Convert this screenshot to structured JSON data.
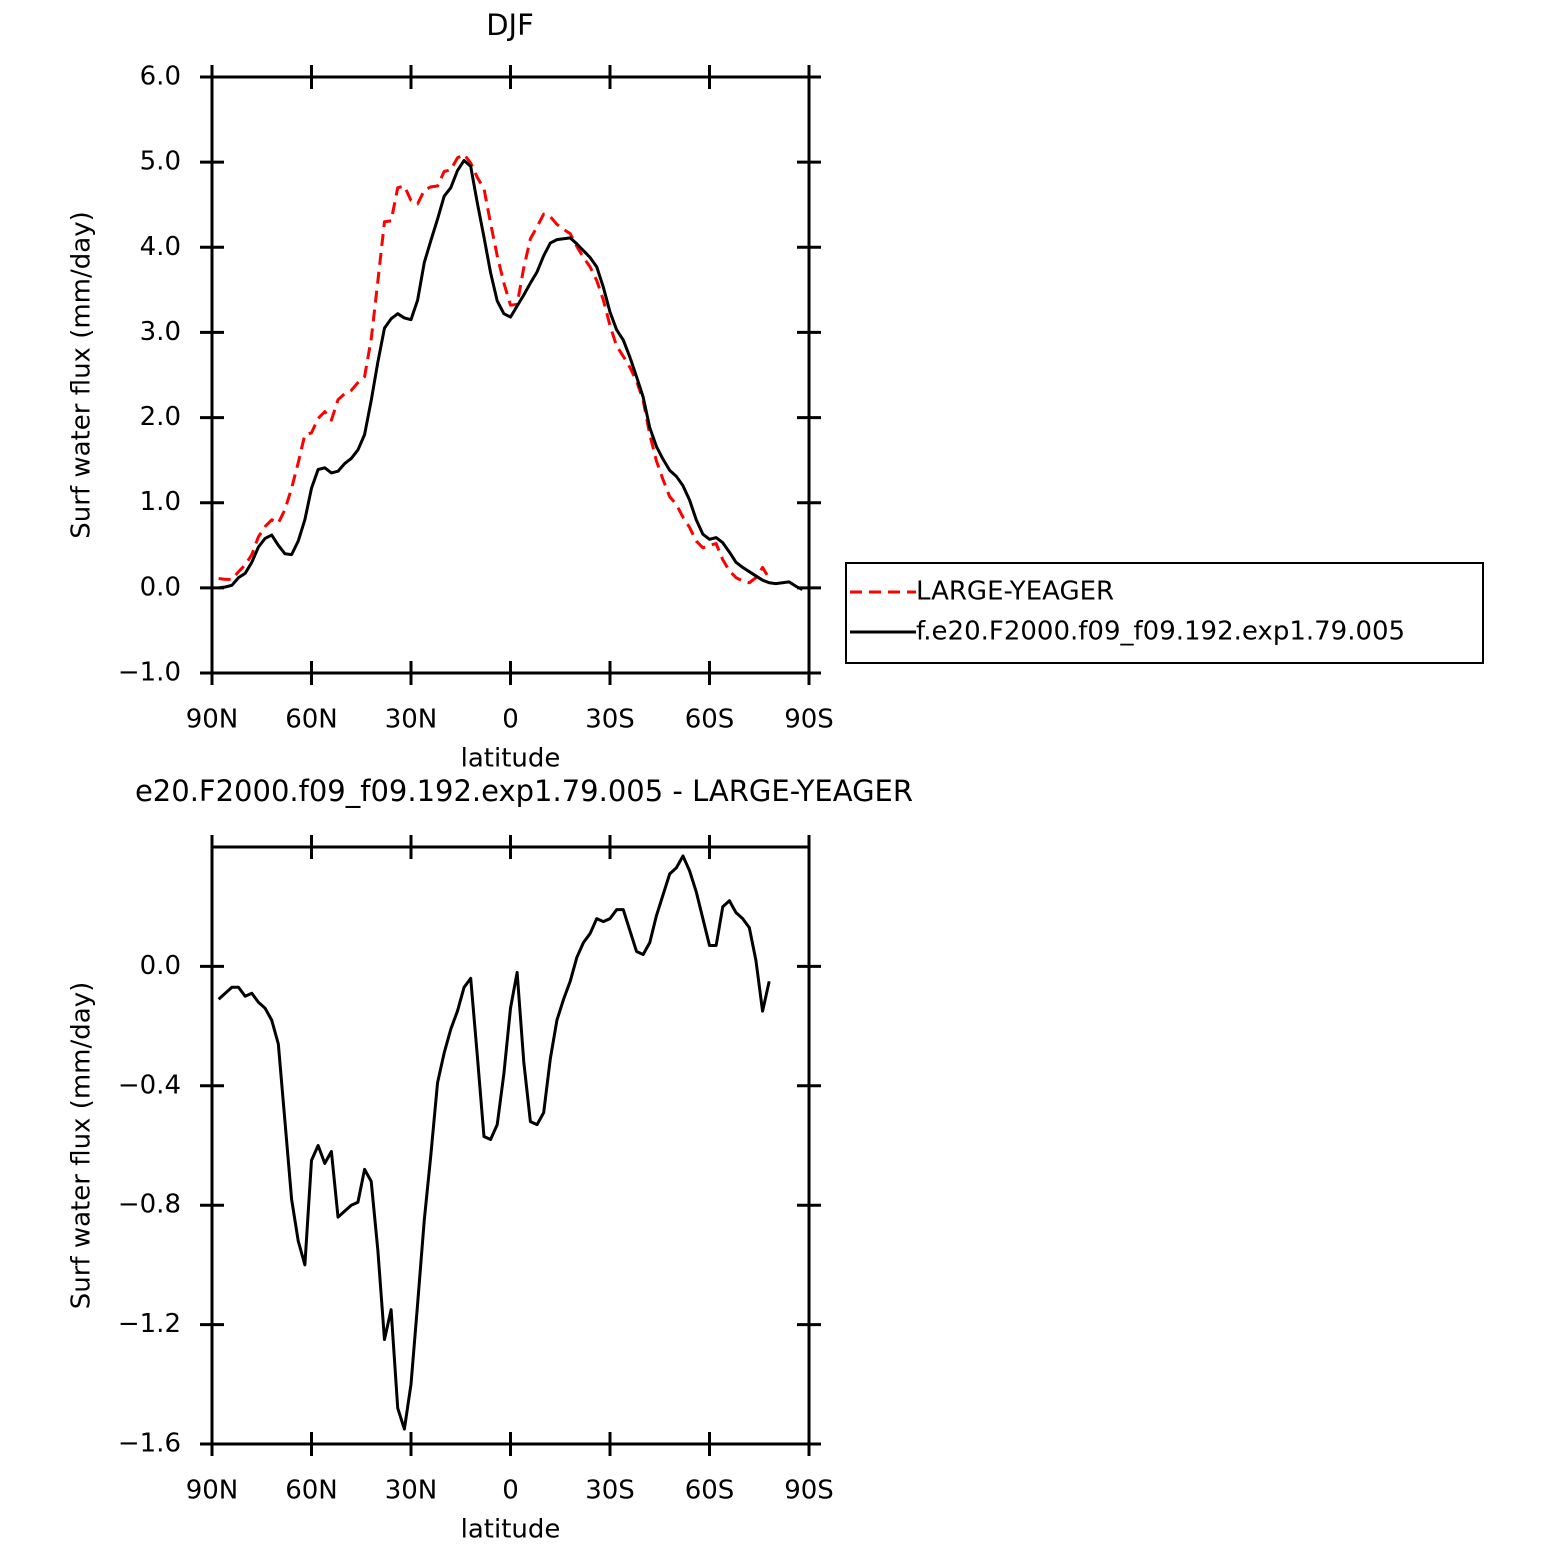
{
  "chart_data": [
    {
      "type": "line",
      "title": "DJF",
      "xlabel": "latitude",
      "ylabel": "Surf water flux (mm/day)",
      "x": [
        88,
        86,
        84,
        82,
        80,
        78,
        76,
        74,
        72,
        70,
        68,
        66,
        64,
        62,
        60,
        58,
        56,
        54,
        52,
        50,
        48,
        46,
        44,
        42,
        40,
        38,
        36,
        34,
        32,
        30,
        28,
        26,
        24,
        22,
        20,
        18,
        16,
        14,
        12,
        10,
        8,
        6,
        4,
        2,
        0,
        -2,
        -4,
        -6,
        -8,
        -10,
        -12,
        -14,
        -16,
        -18,
        -20,
        -22,
        -24,
        -26,
        -28,
        -30,
        -32,
        -34,
        -36,
        -38,
        -40,
        -42,
        -44,
        -46,
        -48,
        -50,
        -52,
        -54,
        -56,
        -58,
        -60,
        -62,
        -64,
        -66,
        -68,
        -70,
        -72,
        -74,
        -76,
        -78,
        -80,
        -82,
        -84,
        -86,
        -88
      ],
      "series": [
        {
          "name": "LARGE-YEAGER",
          "color": "#ff0000",
          "linestyle": "dashed",
          "values": [
            0.11,
            0.1,
            0.1,
            0.19,
            0.27,
            0.39,
            0.6,
            0.72,
            0.8,
            0.76,
            0.92,
            1.17,
            1.47,
            1.8,
            1.82,
            1.99,
            2.07,
            1.97,
            2.21,
            2.28,
            2.32,
            2.41,
            2.48,
            2.92,
            3.6,
            4.3,
            4.31,
            4.7,
            4.72,
            4.55,
            4.51,
            4.67,
            4.71,
            4.72,
            4.89,
            4.91,
            5.05,
            5.09,
            4.99,
            4.82,
            4.69,
            4.28,
            3.9,
            3.58,
            3.32,
            3.33,
            3.76,
            4.1,
            4.24,
            4.39,
            4.36,
            4.27,
            4.21,
            4.16,
            4.01,
            3.88,
            3.77,
            3.61,
            3.38,
            3.08,
            2.84,
            2.72,
            2.59,
            2.43,
            2.2,
            1.8,
            1.49,
            1.27,
            1.07,
            0.98,
            0.83,
            0.71,
            0.55,
            0.47,
            0.5,
            0.52,
            0.33,
            0.2,
            0.12,
            0.08,
            0.06,
            0.12,
            0.24,
            0.11,
            null,
            null,
            null,
            null,
            null
          ]
        },
        {
          "name": "f.e20.F2000.f09_f09.192.exp1.79.005",
          "color": "#000000",
          "linestyle": "solid",
          "values": [
            0.0,
            0.01,
            0.03,
            0.12,
            0.17,
            0.3,
            0.48,
            0.58,
            0.62,
            0.5,
            0.4,
            0.39,
            0.55,
            0.8,
            1.17,
            1.39,
            1.41,
            1.35,
            1.37,
            1.46,
            1.52,
            1.62,
            1.8,
            2.2,
            2.65,
            3.05,
            3.16,
            3.22,
            3.17,
            3.15,
            3.38,
            3.82,
            4.08,
            4.33,
            4.6,
            4.7,
            4.9,
            5.02,
            4.95,
            4.52,
            4.12,
            3.7,
            3.37,
            3.22,
            3.18,
            3.31,
            3.44,
            3.58,
            3.71,
            3.9,
            4.05,
            4.09,
            4.1,
            4.11,
            4.04,
            3.96,
            3.88,
            3.77,
            3.53,
            3.24,
            3.03,
            2.91,
            2.71,
            2.48,
            2.24,
            1.88,
            1.66,
            1.51,
            1.38,
            1.31,
            1.2,
            1.03,
            0.8,
            0.63,
            0.57,
            0.59,
            0.53,
            0.42,
            0.3,
            0.24,
            0.19,
            0.14,
            0.09,
            0.06,
            0.05,
            0.06,
            0.07,
            0.02,
            -0.02
          ]
        }
      ],
      "xlim": [
        90,
        -90
      ],
      "xticks": [
        {
          "value": 90,
          "label": "90N"
        },
        {
          "value": 60,
          "label": "60N"
        },
        {
          "value": 30,
          "label": "30N"
        },
        0,
        {
          "value": -30,
          "label": "30S"
        },
        {
          "value": -60,
          "label": "60S"
        },
        {
          "value": -90,
          "label": "90S"
        }
      ],
      "ylim": [
        -1,
        6
      ],
      "yticks": [
        {
          "value": -1,
          "label": "−1.0"
        },
        {
          "value": 0,
          "label": "0.0"
        },
        {
          "value": 1,
          "label": "1.0"
        },
        {
          "value": 2,
          "label": "2.0"
        },
        {
          "value": 3,
          "label": "3.0"
        },
        {
          "value": 4,
          "label": "4.0"
        },
        {
          "value": 5,
          "label": "5.0"
        },
        {
          "value": 6,
          "label": "6.0"
        }
      ],
      "legend": "outside-right"
    },
    {
      "type": "line",
      "title": "e20.F2000.f09_f09.192.exp1.79.005 - LARGE-YEAGER",
      "xlabel": "latitude",
      "ylabel": "Surf water flux (mm/day)",
      "x": [
        88,
        86,
        84,
        82,
        80,
        78,
        76,
        74,
        72,
        70,
        68,
        66,
        64,
        62,
        60,
        58,
        56,
        54,
        52,
        50,
        48,
        46,
        44,
        42,
        40,
        38,
        36,
        34,
        32,
        30,
        28,
        26,
        24,
        22,
        20,
        18,
        16,
        14,
        12,
        10,
        8,
        6,
        4,
        2,
        0,
        -2,
        -4,
        -6,
        -8,
        -10,
        -12,
        -14,
        -16,
        -18,
        -20,
        -22,
        -24,
        -26,
        -28,
        -30,
        -32,
        -34,
        -36,
        -38,
        -40,
        -42,
        -44,
        -46,
        -48,
        -50,
        -52,
        -54,
        -56,
        -58,
        -60,
        -62,
        -64,
        -66,
        -68,
        -70,
        -72,
        -74,
        -76,
        -78,
        -80,
        -82,
        -84,
        -86,
        -88
      ],
      "series": [
        {
          "color": "#000000",
          "linestyle": "solid",
          "values": [
            -0.11,
            -0.09,
            -0.07,
            -0.07,
            -0.1,
            -0.09,
            -0.12,
            -0.14,
            -0.18,
            -0.26,
            -0.52,
            -0.78,
            -0.92,
            -1.0,
            -0.65,
            -0.6,
            -0.66,
            -0.62,
            -0.84,
            -0.82,
            -0.8,
            -0.79,
            -0.68,
            -0.72,
            -0.95,
            -1.25,
            -1.15,
            -1.48,
            -1.55,
            -1.4,
            -1.13,
            -0.85,
            -0.63,
            -0.39,
            -0.29,
            -0.21,
            -0.15,
            -0.07,
            -0.04,
            -0.3,
            -0.57,
            -0.58,
            -0.53,
            -0.36,
            -0.14,
            -0.02,
            -0.32,
            -0.52,
            -0.53,
            -0.49,
            -0.31,
            -0.18,
            -0.11,
            -0.05,
            0.03,
            0.08,
            0.11,
            0.16,
            0.15,
            0.16,
            0.19,
            0.19,
            0.12,
            0.05,
            0.04,
            0.08,
            0.17,
            0.24,
            0.31,
            0.33,
            0.37,
            0.32,
            0.25,
            0.16,
            0.07,
            0.07,
            0.2,
            0.22,
            0.18,
            0.16,
            0.13,
            0.02,
            -0.15,
            -0.05,
            null,
            null,
            null,
            null,
            null
          ]
        }
      ],
      "xlim": [
        90,
        -90
      ],
      "xticks": [
        {
          "value": 90,
          "label": "90N"
        },
        {
          "value": 60,
          "label": "60N"
        },
        {
          "value": 30,
          "label": "30N"
        },
        0,
        {
          "value": -30,
          "label": "30S"
        },
        {
          "value": -60,
          "label": "60S"
        },
        {
          "value": -90,
          "label": "90S"
        }
      ],
      "ylim": [
        -1.6,
        0.4
      ],
      "yticks": [
        {
          "value": -1.6,
          "label": "−1.6"
        },
        {
          "value": -1.2,
          "label": "−1.2"
        },
        {
          "value": -0.8,
          "label": "−0.8"
        },
        {
          "value": -0.4,
          "label": "−0.4"
        },
        {
          "value": 0,
          "label": "0.0"
        }
      ]
    }
  ]
}
